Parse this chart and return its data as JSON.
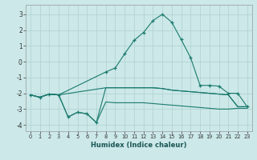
{
  "title": "",
  "xlabel": "Humidex (Indice chaleur)",
  "xlim": [
    -0.5,
    23.5
  ],
  "ylim": [
    -4.4,
    3.6
  ],
  "background_color": "#cce8e8",
  "grid_color": "#b0d0d0",
  "line_color": "#1a7a6e",
  "xtick_labels": [
    "0",
    "1",
    "2",
    "3",
    "4",
    "5",
    "6",
    "7",
    "8",
    "9",
    "10",
    "11",
    "12",
    "13",
    "14",
    "15",
    "16",
    "17",
    "18",
    "19",
    "20",
    "21",
    "22",
    "23"
  ],
  "ytick_values": [
    -4,
    -3,
    -2,
    -1,
    0,
    1,
    2,
    3
  ],
  "ytick_labels": [
    "-4",
    "-3",
    "-2",
    "-1",
    "0",
    "1",
    "2",
    "3"
  ],
  "curve_bottom_x": [
    0,
    1,
    2,
    3,
    4,
    5,
    6,
    7,
    8,
    9,
    10,
    11,
    12,
    13,
    14,
    15,
    16,
    17,
    18,
    19,
    20,
    21,
    22,
    23
  ],
  "curve_bottom_y": [
    -2.1,
    -2.25,
    -2.05,
    -2.1,
    -3.5,
    -3.2,
    -3.3,
    -3.85,
    -2.55,
    -2.6,
    -2.6,
    -2.6,
    -2.6,
    -2.65,
    -2.7,
    -2.75,
    -2.8,
    -2.85,
    -2.9,
    -2.95,
    -3.0,
    -3.0,
    -2.95,
    -2.95
  ],
  "curve_mid_x": [
    0,
    1,
    2,
    3,
    4,
    5,
    6,
    7,
    8,
    9,
    10,
    11,
    12,
    13,
    14,
    15,
    16,
    17,
    18,
    19,
    20,
    21,
    22,
    23
  ],
  "curve_mid_y": [
    -2.1,
    -2.25,
    -2.05,
    -2.1,
    -3.5,
    -3.2,
    -3.3,
    -3.85,
    -1.65,
    -1.65,
    -1.65,
    -1.65,
    -1.65,
    -1.65,
    -1.7,
    -1.8,
    -1.85,
    -1.9,
    -1.95,
    -2.0,
    -2.05,
    -2.1,
    -2.85,
    -2.85
  ],
  "curve_flat_x": [
    0,
    1,
    2,
    3,
    8,
    9,
    10,
    11,
    12,
    13,
    14,
    15,
    16,
    17,
    18,
    19,
    20,
    21,
    22,
    23
  ],
  "curve_flat_y": [
    -2.1,
    -2.25,
    -2.05,
    -2.1,
    -1.65,
    -1.65,
    -1.65,
    -1.65,
    -1.65,
    -1.65,
    -1.7,
    -1.8,
    -1.85,
    -1.9,
    -1.95,
    -2.0,
    -2.05,
    -2.1,
    -2.85,
    -2.85
  ],
  "curve_peak_x": [
    0,
    1,
    2,
    3,
    8,
    9,
    10,
    11,
    12,
    13,
    14,
    15,
    16,
    17,
    18,
    19,
    20,
    21,
    22,
    23
  ],
  "curve_peak_y": [
    -2.1,
    -2.25,
    -2.05,
    -2.1,
    -0.65,
    -0.4,
    0.5,
    1.35,
    1.85,
    2.6,
    3.0,
    2.5,
    1.4,
    0.25,
    -1.5,
    -1.5,
    -1.55,
    -2.0,
    -2.0,
    -2.85
  ],
  "markers_peak_x": [
    8,
    9,
    10,
    11,
    12,
    13,
    14,
    15,
    16,
    17,
    18,
    19,
    20,
    21,
    22,
    23
  ],
  "markers_peak_y": [
    -0.65,
    -0.4,
    0.5,
    1.35,
    1.85,
    2.6,
    3.0,
    2.5,
    1.4,
    0.25,
    -1.5,
    -1.5,
    -1.55,
    -2.0,
    -2.0,
    -2.85
  ],
  "markers_dip_x": [
    0,
    1,
    2,
    3,
    4,
    5,
    6,
    7
  ],
  "markers_dip_y": [
    -2.1,
    -2.25,
    -2.05,
    -2.1,
    -3.5,
    -3.2,
    -3.3,
    -3.85
  ]
}
